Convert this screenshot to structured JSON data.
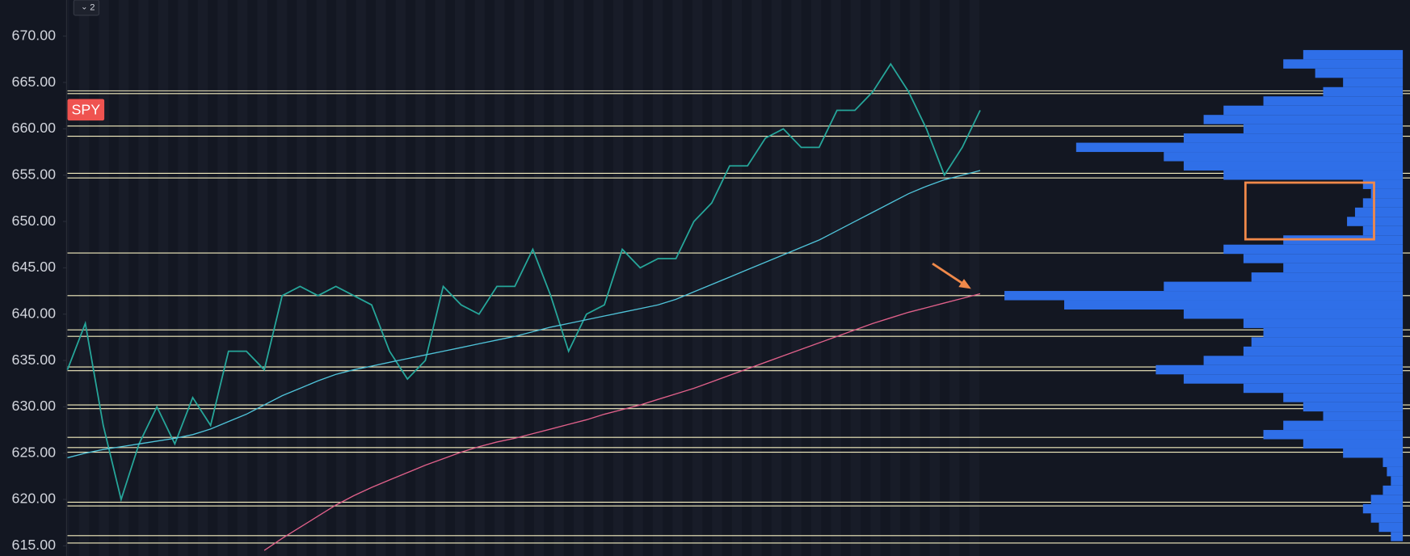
{
  "toolbar": {
    "button": "2"
  },
  "chart_data": {
    "type": "line",
    "symbol": "SPY",
    "ylim": [
      613.9,
      673.9
    ],
    "yticks": [
      {
        "value": 615,
        "label": "615.00"
      },
      {
        "value": 620,
        "label": "620.00"
      },
      {
        "value": 625,
        "label": "625.00"
      },
      {
        "value": 630,
        "label": "630.00"
      },
      {
        "value": 635,
        "label": "635.00"
      },
      {
        "value": 640,
        "label": "640.00"
      },
      {
        "value": 645,
        "label": "645.00"
      },
      {
        "value": 650,
        "label": "650.00"
      },
      {
        "value": 655,
        "label": "655.00"
      },
      {
        "value": 660,
        "label": "660.00"
      },
      {
        "value": 665,
        "label": "665.00"
      },
      {
        "value": 670,
        "label": "670.00"
      }
    ],
    "series": [
      {
        "color": "#26a69a",
        "values": [
          634,
          639,
          628,
          620,
          626,
          630,
          626,
          631,
          628,
          636,
          636,
          634,
          642,
          643,
          642,
          643,
          642,
          641,
          636,
          633,
          635,
          643,
          641,
          640,
          643,
          643,
          647,
          642,
          636,
          640,
          641,
          647,
          645,
          646,
          646,
          650,
          652,
          656,
          656,
          659,
          660,
          658,
          658,
          662,
          662,
          664,
          667,
          664,
          660,
          655,
          658,
          662
        ]
      },
      {
        "color": "#4fc3d9",
        "values": [
          624.5,
          625,
          625.4,
          625.7,
          626,
          626.3,
          626.6,
          627,
          627.6,
          628.4,
          629.2,
          630.2,
          631.2,
          632,
          632.8,
          633.5,
          634,
          634.4,
          634.8,
          635.2,
          635.6,
          636,
          636.4,
          636.8,
          637.2,
          637.6,
          638.1,
          638.6,
          639,
          639.4,
          639.8,
          640.2,
          640.6,
          641,
          641.6,
          642.4,
          643.2,
          644,
          644.8,
          645.6,
          646.4,
          647.2,
          648,
          649,
          650,
          651,
          652,
          653,
          653.8,
          654.5,
          655,
          655.5
        ]
      },
      {
        "color": "#e0608a",
        "values": [
          null,
          null,
          null,
          null,
          null,
          null,
          null,
          null,
          null,
          null,
          null,
          614.5,
          615.8,
          617,
          618.2,
          619.4,
          620.4,
          621.3,
          622.1,
          622.9,
          623.7,
          624.4,
          625.1,
          625.7,
          626.2,
          626.6,
          627.1,
          627.6,
          628.1,
          628.6,
          629.2,
          629.7,
          630.2,
          630.8,
          631.4,
          632,
          632.7,
          633.4,
          634.1,
          634.8,
          635.5,
          636.2,
          636.9,
          637.6,
          638.3,
          639,
          639.6,
          640.2,
          640.7,
          641.2,
          641.7,
          642.2
        ]
      }
    ],
    "levels": [
      664.1,
      663.8,
      660.3,
      659.2,
      655.2,
      654.7,
      646.6,
      642.0,
      638.3,
      637.6,
      634.3,
      633.9,
      630.2,
      629.8,
      626.7,
      625.6,
      625.1,
      619.7,
      619.3,
      616.1,
      615.3
    ],
    "level_color": "#f5eec0",
    "volume_profile": {
      "color": "#2f6fe8",
      "prices": [
        668,
        667,
        666,
        665,
        664,
        663,
        662,
        661,
        660,
        659,
        658,
        657,
        656,
        655,
        654,
        653,
        652,
        651,
        650,
        649,
        648,
        647,
        646,
        645,
        644,
        643,
        642,
        641,
        640,
        639,
        638,
        637,
        636,
        635,
        634,
        633,
        632,
        631,
        630,
        629,
        628,
        627,
        626,
        625,
        624,
        623,
        622,
        621,
        620,
        619,
        618,
        617,
        616
      ],
      "volumes": [
        25,
        30,
        22,
        15,
        20,
        35,
        45,
        50,
        40,
        55,
        82,
        60,
        55,
        45,
        10,
        8,
        10,
        12,
        14,
        10,
        30,
        45,
        40,
        30,
        38,
        60,
        100,
        85,
        55,
        40,
        35,
        38,
        40,
        50,
        62,
        55,
        40,
        30,
        25,
        20,
        30,
        35,
        25,
        15,
        5,
        4,
        3,
        5,
        8,
        10,
        8,
        6,
        3
      ]
    }
  }
}
